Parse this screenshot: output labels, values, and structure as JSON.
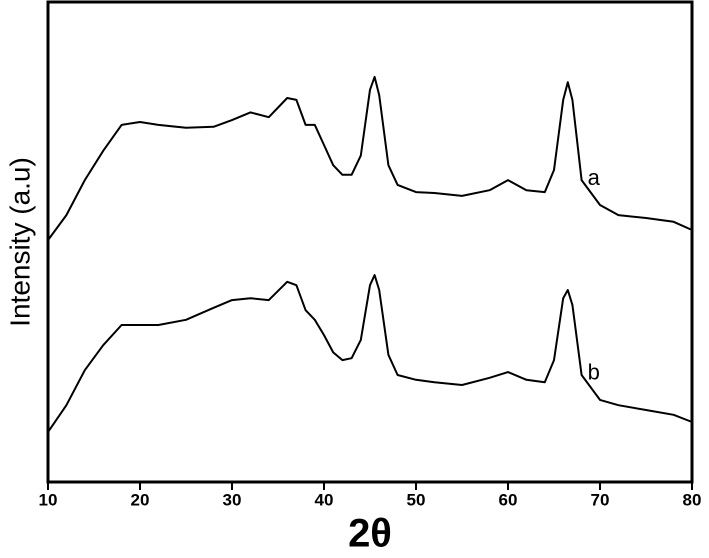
{
  "chart_data": {
    "type": "line",
    "x_label": "2θ",
    "y_label": "Intensity (a.u)",
    "xlim": [
      10,
      80
    ],
    "xticks": [
      10,
      20,
      30,
      40,
      50,
      60,
      70,
      80
    ],
    "ylim": [
      0,
      100
    ],
    "x": [
      10,
      12,
      14,
      16,
      18,
      20,
      22,
      25,
      28,
      30,
      32,
      34,
      36,
      37,
      38,
      39,
      40,
      41,
      42,
      43,
      44,
      45,
      45.5,
      46,
      47,
      48,
      50,
      52,
      55,
      58,
      60,
      62,
      64,
      65,
      66,
      66.5,
      67,
      68,
      70,
      72,
      75,
      78,
      80
    ],
    "series": [
      {
        "name": "a",
        "color": "#000000",
        "values": [
          50.4,
          55.6,
          62.9,
          69,
          74.4,
          75,
          74.4,
          73.8,
          74,
          75.4,
          77,
          76,
          80,
          79.6,
          74.4,
          74.4,
          70.2,
          66,
          64,
          64,
          68,
          81.7,
          84.4,
          80.6,
          66,
          61.9,
          60.4,
          60.2,
          59.6,
          60.8,
          62.9,
          60.8,
          60.4,
          65,
          79.6,
          83.3,
          79.6,
          62.9,
          57.7,
          55.6,
          55,
          54.2,
          52.5
        ]
      },
      {
        "name": "b",
        "color": "#000000",
        "values": [
          10.4,
          16,
          23.3,
          28.5,
          32.7,
          32.7,
          32.7,
          33.8,
          36.3,
          37.9,
          38.3,
          37.9,
          41.7,
          41,
          35.8,
          33.8,
          30.6,
          27,
          25.4,
          25.8,
          29.6,
          41,
          43.1,
          40,
          26.5,
          22.3,
          21.3,
          20.8,
          20.2,
          21.7,
          22.9,
          21.3,
          20.8,
          25.4,
          38.3,
          40,
          36.9,
          22.3,
          17.1,
          16,
          15,
          14,
          12.5
        ]
      }
    ]
  }
}
